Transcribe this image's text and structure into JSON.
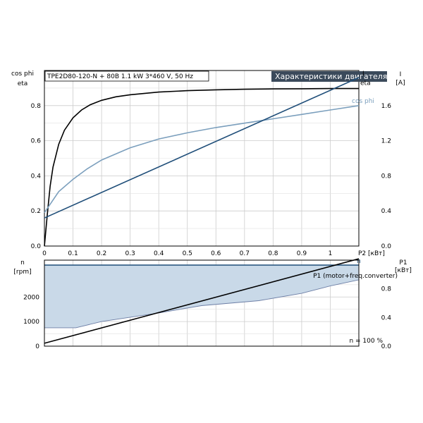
{
  "chart_data": [
    {
      "type": "line",
      "title_box": "TPE2D80-120-N + 80B  1.1 kW  3*460 V, 50 Hz",
      "title_tag": "Характеристики двигателя",
      "xlabel": "P2 [кВт]",
      "xlim": [
        0,
        1.1
      ],
      "x_ticks": [
        0,
        0.1,
        0.2,
        0.3,
        0.4,
        0.5,
        0.6,
        0.7,
        0.8,
        0.9,
        1.0
      ],
      "y_left_label": [
        "cos phi",
        "eta"
      ],
      "y_left_lim": [
        0,
        1.0
      ],
      "y_left_ticks": [
        0.0,
        0.2,
        0.4,
        0.6,
        0.8
      ],
      "y_right_label": [
        "I",
        "[A]"
      ],
      "y_right_lim": [
        0,
        2.0
      ],
      "y_right_ticks": [
        0.0,
        0.4,
        0.8,
        1.2,
        1.6
      ],
      "grid": true,
      "series": [
        {
          "name": "eta",
          "axis": "left",
          "color": "#000000",
          "x": [
            0,
            0.01,
            0.02,
            0.03,
            0.05,
            0.07,
            0.1,
            0.13,
            0.16,
            0.2,
            0.25,
            0.3,
            0.4,
            0.5,
            0.6,
            0.7,
            0.8,
            0.9,
            1.0,
            1.1
          ],
          "y": [
            0,
            0.18,
            0.34,
            0.45,
            0.58,
            0.66,
            0.73,
            0.775,
            0.805,
            0.83,
            0.85,
            0.862,
            0.877,
            0.885,
            0.89,
            0.893,
            0.895,
            0.896,
            0.897,
            0.897
          ]
        },
        {
          "name": "cos phi",
          "axis": "left",
          "color": "#7b9fbd",
          "x": [
            0,
            0.05,
            0.1,
            0.15,
            0.2,
            0.3,
            0.4,
            0.5,
            0.6,
            0.7,
            0.8,
            0.9,
            1.0,
            1.1
          ],
          "y": [
            0.19,
            0.31,
            0.38,
            0.44,
            0.49,
            0.56,
            0.61,
            0.645,
            0.675,
            0.7,
            0.725,
            0.75,
            0.775,
            0.8
          ]
        },
        {
          "name": "I",
          "axis": "right",
          "color": "#1f4e79",
          "x": [
            0,
            1.1
          ],
          "y": [
            0.32,
            1.92
          ]
        }
      ]
    },
    {
      "type": "area",
      "xlim": [
        0,
        1.1
      ],
      "y_left_label": [
        "n",
        "[rpm]"
      ],
      "y_left_lim": [
        0,
        3500
      ],
      "y_left_ticks": [
        0,
        1000,
        2000
      ],
      "y_right_label": [
        "P1",
        "[кВт]"
      ],
      "y_right_lim": [
        0,
        1.2
      ],
      "y_right_ticks": [
        0.0,
        0.4,
        0.8
      ],
      "annotation": "n = 100 %",
      "grid": true,
      "series": [
        {
          "name": "n",
          "axis": "left",
          "color": "#1f4e79",
          "fill": "#c9d9e8",
          "x": [
            0,
            1.1
          ],
          "y_upper": [
            3300,
            3300
          ],
          "lower_x": [
            0,
            0.11,
            0.2,
            0.4,
            0.55,
            0.75,
            0.9,
            1.0,
            1.1
          ],
          "lower_y": [
            750,
            750,
            1000,
            1350,
            1650,
            1850,
            2150,
            2450,
            2700
          ]
        },
        {
          "name": "P1 (motor+freq.converter)",
          "axis": "right",
          "color": "#000000",
          "x": [
            0,
            1.1
          ],
          "y": [
            0.04,
            1.22
          ]
        }
      ]
    }
  ]
}
